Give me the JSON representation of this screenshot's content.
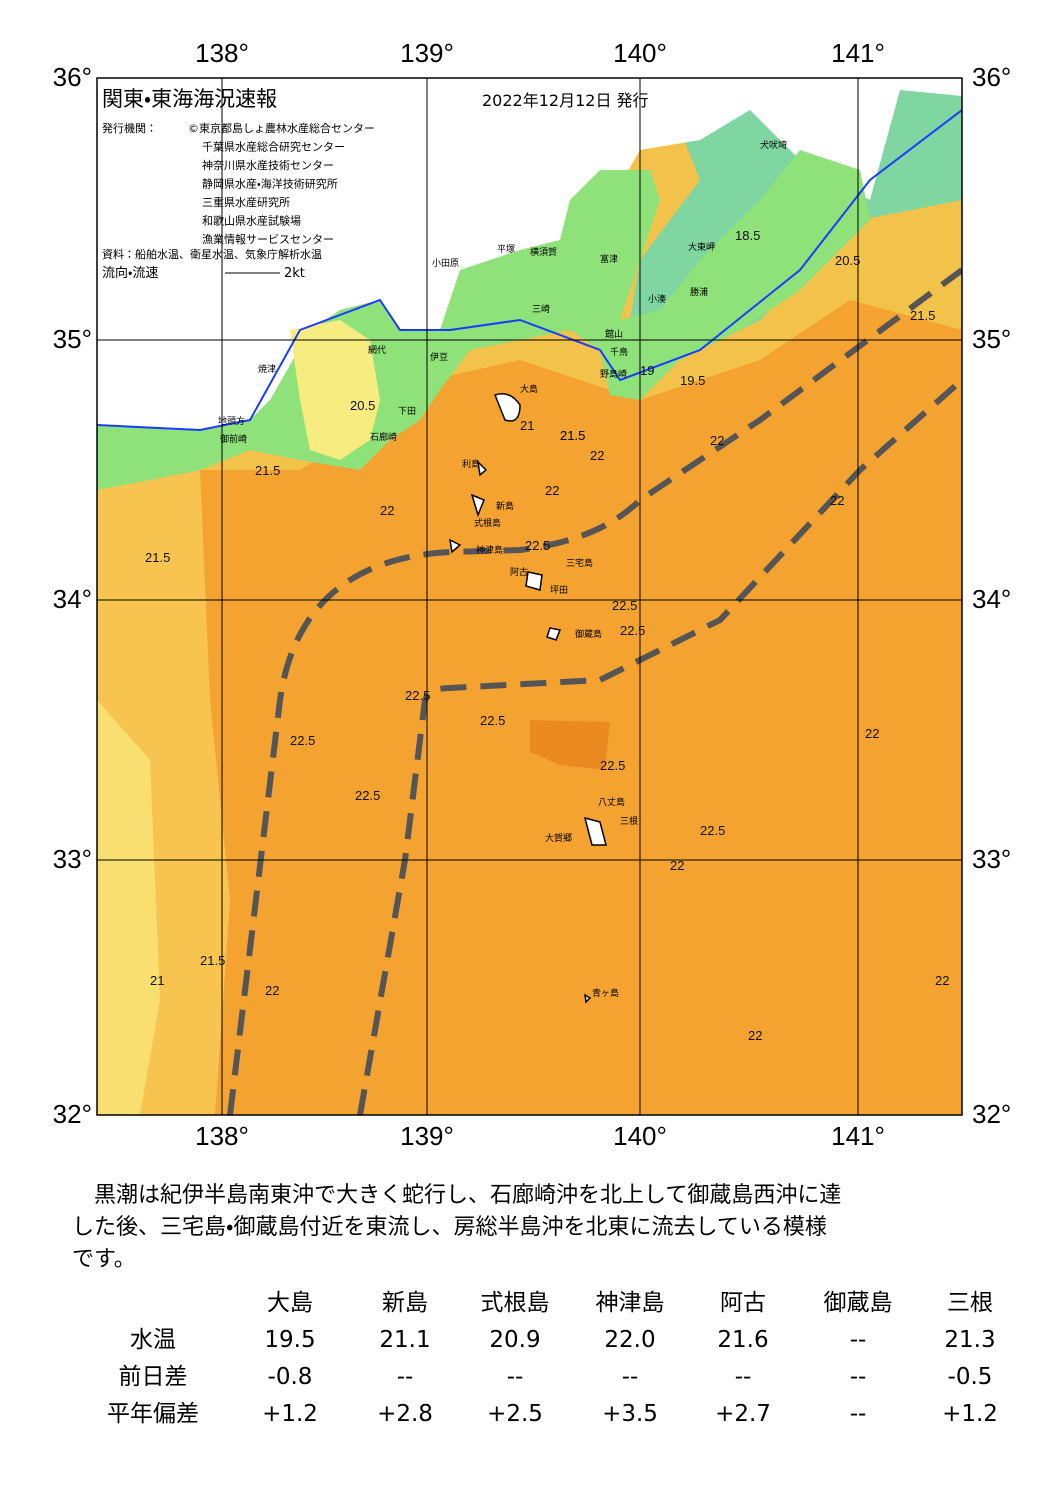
{
  "header": {
    "title": "関東・東海海況速報",
    "date": "2022年12月12日 発行",
    "issuer_label": "発行機関：",
    "issuers": [
      "©東京都島しょ農林水産総合センター",
      "千葉県水産総合研究センター",
      "神奈川県水産技術センター",
      "静岡県水産・海洋技術研究所",
      "三重県水産研究所",
      "和歌山県水産試験場",
      "漁業情報サービスセンター"
    ],
    "source": "資料：船舶水温、衛星水温、気象庁解析水温",
    "flow_label": "流向・流速",
    "flow_scale": "2kt"
  },
  "map": {
    "lon_labels": [
      "138°",
      "139°",
      "140°",
      "141°"
    ],
    "lat_labels": [
      "36°",
      "35°",
      "34°",
      "33°",
      "32°"
    ],
    "place_names": [
      "大島",
      "利島",
      "新島",
      "式根島",
      "神津島",
      "三宅島",
      "阿古",
      "坪田",
      "御蔵島",
      "八丈島",
      "三根",
      "大賀郷",
      "青ヶ島",
      "小田原",
      "平塚",
      "横須賀",
      "三崎",
      "富津",
      "館山",
      "千鳥",
      "野島崎",
      "大東岬",
      "勝浦",
      "小湊",
      "犬吠埼",
      "焼津",
      "伊豆",
      "下田",
      "石廊崎",
      "御前崎",
      "地頭方",
      "網代"
    ],
    "contour_labels": [
      "21.5",
      "22",
      "22.5",
      "22",
      "21.5",
      "22",
      "22.5",
      "22.5",
      "22.5",
      "22",
      "22.5",
      "21.5",
      "21",
      "22.5",
      "22",
      "21.5",
      "22",
      "22",
      "22.5",
      "22",
      "22.5",
      "22.5",
      "21.5",
      "21",
      "20.5",
      "19.5",
      "19",
      "18.5",
      "20.5",
      "21.5",
      "22",
      "22"
    ]
  },
  "summary_lines": [
    "黒潮は紀伊半島南東沖で大きく蛇行し、石廊崎沖を北上して御蔵島西沖に達",
    "した後、三宅島・御蔵島付近を東流し、房総半島沖を北東に流去している模様",
    "です。"
  ],
  "table": {
    "header": [
      "大島",
      "新島",
      "式根島",
      "神津島",
      "阿古",
      "御蔵島",
      "三根"
    ],
    "rows": [
      {
        "label": "水温",
        "cells": [
          "19.5",
          "21.1",
          "20.9",
          "22.0",
          "21.6",
          "--",
          "21.3"
        ]
      },
      {
        "label": "前日差",
        "cells": [
          "-0.8",
          "--",
          "--",
          "--",
          "--",
          "--",
          "-0.5"
        ]
      },
      {
        "label": "平年偏差",
        "cells": [
          "+1.2",
          "+2.8",
          "+2.5",
          "+3.5",
          "+2.7",
          "--",
          "+1.2"
        ]
      }
    ]
  }
}
